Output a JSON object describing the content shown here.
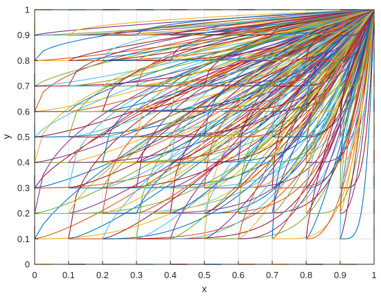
{
  "chart_data": {
    "type": "line",
    "title": "",
    "xlabel": "x",
    "ylabel": "y",
    "xlim": [
      0,
      1
    ],
    "ylim": [
      0,
      1
    ],
    "grid": true,
    "legend": "none",
    "x_ticks": [
      "0",
      "0.1",
      "0.2",
      "0.3",
      "0.4",
      "0.5",
      "0.6",
      "0.7",
      "0.8",
      "0.9",
      "1"
    ],
    "y_ticks": [
      "0",
      "0.1",
      "0.2",
      "0.3",
      "0.4",
      "0.5",
      "0.6",
      "0.7",
      "0.8",
      "0.9",
      "1"
    ],
    "series_description_values": {
      "start_x": [
        0,
        0.1,
        0.2,
        0.3,
        0.4,
        0.5,
        0.6,
        0.7,
        0.8,
        0.9
      ],
      "start_y": [
        0.1,
        0.2,
        0.3,
        0.4,
        0.5,
        0.6,
        0.7,
        0.8,
        0.9
      ],
      "end_point": [
        1,
        1
      ]
    },
    "colors": [
      "#0072BD",
      "#D95319",
      "#EDB120",
      "#7E2F8E",
      "#77AC30",
      "#4DBEEE",
      "#A2142F"
    ]
  }
}
